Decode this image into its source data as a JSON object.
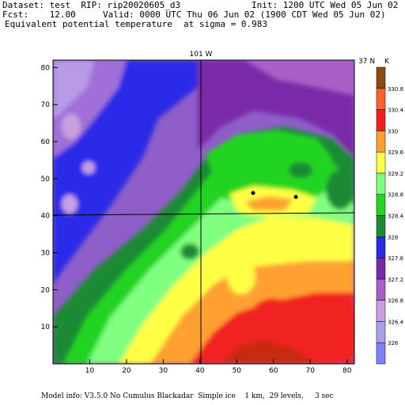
{
  "header": {
    "dataset": "Dataset: test  RIP: rip20020605_d3",
    "init": "Init: 1200 UTC Wed 05 Jun 02",
    "fcst": "Fcst:    12.00",
    "valid": "Valid: 0000 UTC Thu 06 Jun 02 (1900 CDT Wed 05 Jun 02)",
    "field": "Equivalent potential temperature",
    "level": "at sigma = 0.983"
  },
  "map": {
    "lon_label": "101 W",
    "lat_label": "37 N",
    "unit": "K",
    "x_ticks": [
      "10",
      "20",
      "30",
      "40",
      "50",
      "60",
      "70",
      "80"
    ],
    "y_ticks": [
      "10",
      "20",
      "30",
      "40",
      "50",
      "60",
      "70",
      "80"
    ]
  },
  "colorbar": {
    "labels": [
      "326",
      "326.4",
      "326.8",
      "327.2",
      "327.6",
      "328",
      "328.4",
      "328.8",
      "329.2",
      "329.6",
      "330",
      "330.4",
      "330.8"
    ],
    "colors": [
      "#7f80ff",
      "#a8a0e8",
      "#c8a0e0",
      "#a860c8",
      "#7a2aa8",
      "#2a2ae8",
      "#1f8a36",
      "#24d424",
      "#80ff80",
      "#ffff44",
      "#ffa030",
      "#f02020",
      "#ff6030",
      "#8c4a14"
    ]
  },
  "footer": {
    "model_info": "Model info: V3.5.0 No Cumulus Blackadar  Simple ice    1 km,  29 levels,     3 sec"
  }
}
